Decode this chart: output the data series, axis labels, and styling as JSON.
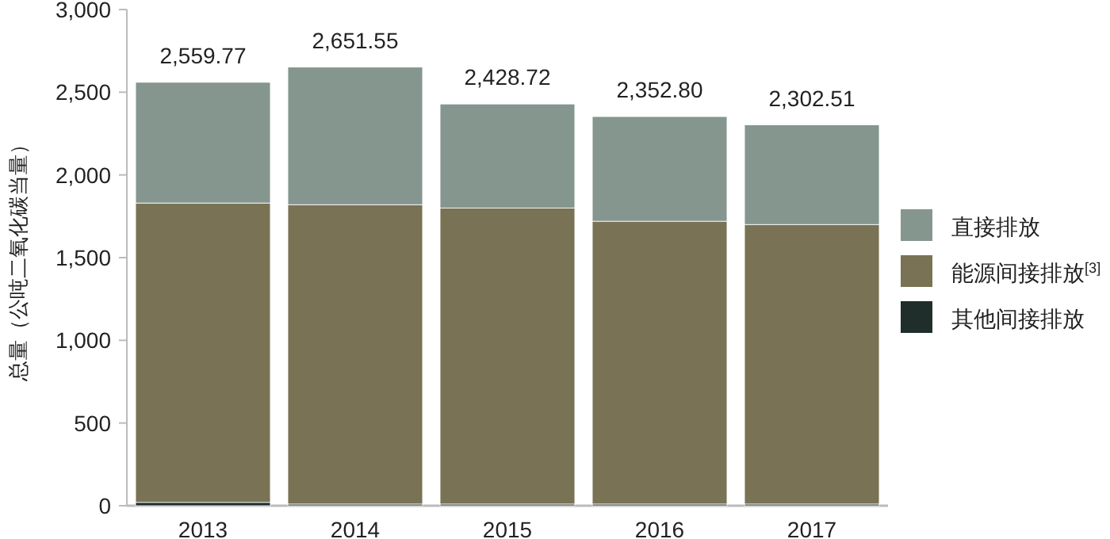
{
  "chart_data": {
    "type": "bar",
    "stacked": true,
    "ylabel": "总量（公吨二氧化碳当量）",
    "categories": [
      "2013",
      "2014",
      "2015",
      "2016",
      "2017"
    ],
    "series": [
      {
        "name": "其他间接排放",
        "color": "#1f2e2a",
        "values": [
          20,
          10,
          10,
          10,
          10
        ]
      },
      {
        "name": "能源间接排放$^{[3]}$",
        "color": "#797254",
        "values": [
          1810,
          1810,
          1790,
          1710,
          1690
        ]
      },
      {
        "name": "直接排放",
        "color": "#85968f",
        "values": [
          729.77,
          831.55,
          628.72,
          632.8,
          602.51
        ]
      }
    ],
    "ylim": [
      0,
      3000
    ],
    "yticks": [
      {
        "value": 0,
        "label": "0"
      },
      {
        "value": 500,
        "label": "500"
      },
      {
        "value": 1000,
        "label": "1,000"
      },
      {
        "value": 1500,
        "label": "1,500"
      },
      {
        "value": 2000,
        "label": "2,000"
      },
      {
        "value": 2500,
        "label": "2,500"
      },
      {
        "value": 3000,
        "label": "3,000"
      }
    ],
    "totals": [
      "2,559.77",
      "2,651.55",
      "2,428.72",
      "2,352.80",
      "2,302.51"
    ],
    "legend": "right"
  }
}
